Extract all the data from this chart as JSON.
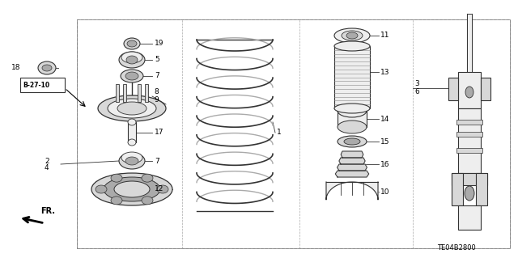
{
  "bg_color": "#ffffff",
  "line_color": "#333333",
  "gray_fill": "#d8d8d8",
  "light_fill": "#eeeeee",
  "dark_fill": "#aaaaaa",
  "white_fill": "#ffffff",
  "diagram_code": "TE04B2800",
  "border_color": "#888888"
}
